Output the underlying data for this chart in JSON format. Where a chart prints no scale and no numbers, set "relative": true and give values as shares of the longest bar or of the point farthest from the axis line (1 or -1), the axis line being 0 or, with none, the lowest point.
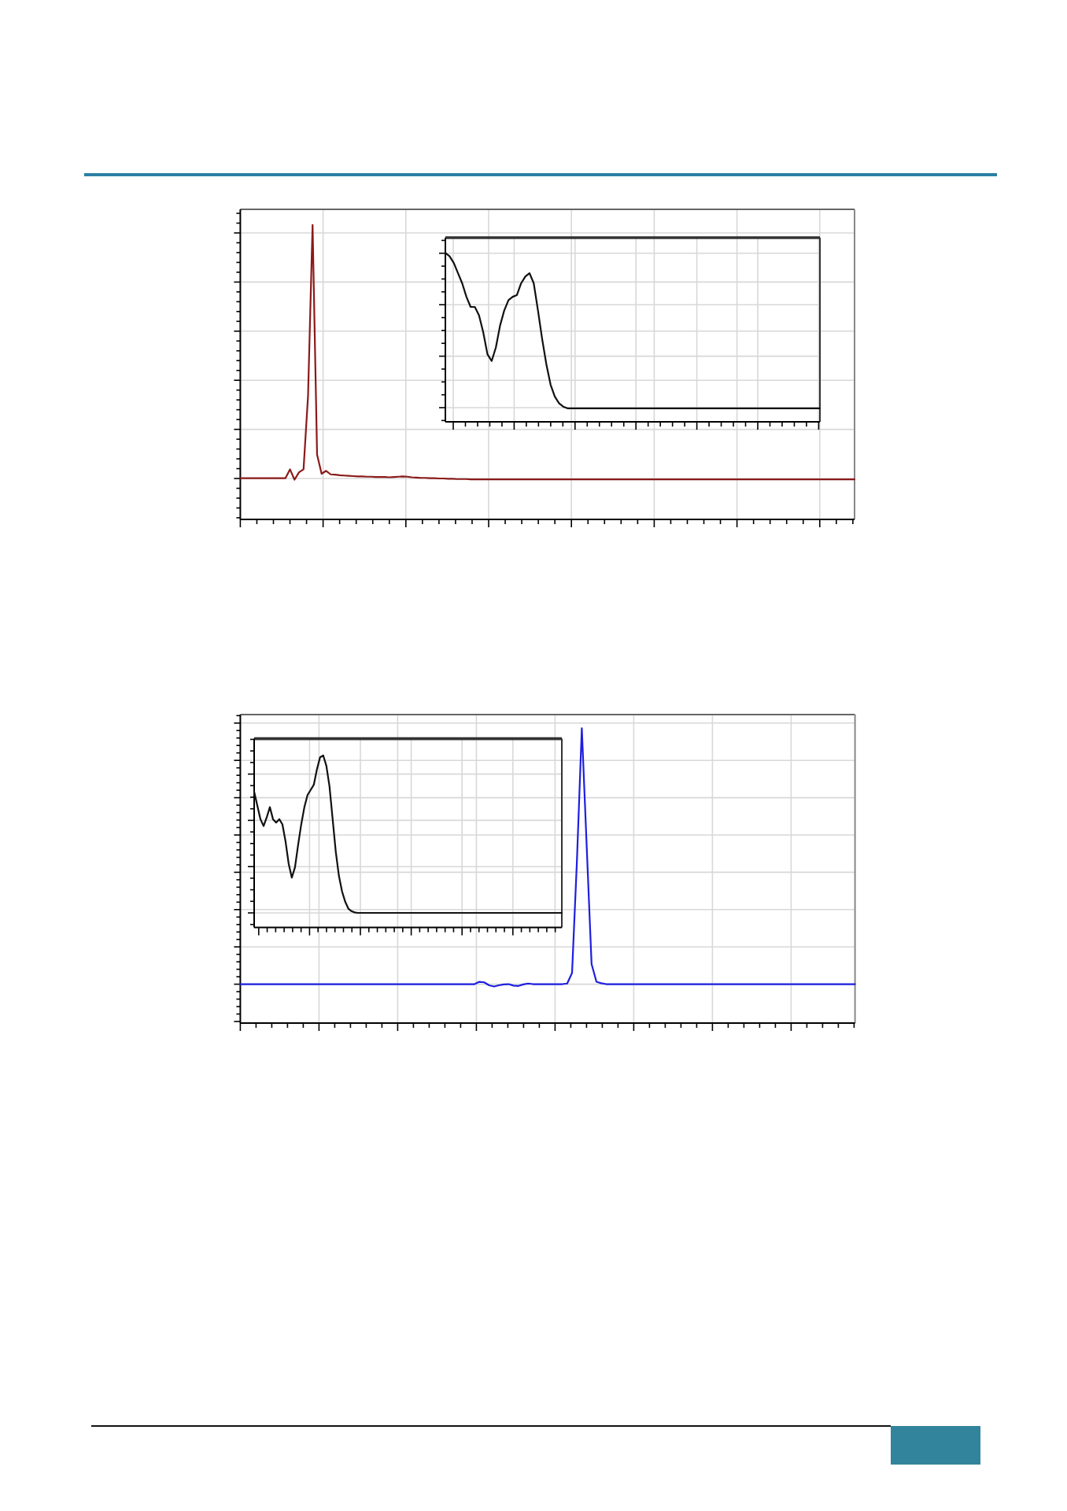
{
  "chart_data": [
    {
      "type": "line",
      "relative": true,
      "grid": true,
      "color": "#8b1a1a",
      "categories": [
        null,
        null,
        null,
        null,
        null,
        null,
        null,
        null,
        null,
        null,
        null,
        null,
        null,
        null,
        null,
        null,
        null,
        null,
        null,
        null,
        null,
        null,
        null,
        null,
        null,
        null,
        null,
        null,
        null,
        null,
        null,
        null,
        null,
        null,
        null,
        null,
        null,
        null,
        null,
        null,
        null,
        null,
        null,
        null,
        null,
        null,
        null,
        null,
        null,
        null,
        null,
        null,
        null,
        null,
        null,
        null,
        null,
        null,
        null,
        null,
        null,
        null,
        null,
        null,
        null,
        null,
        null,
        null,
        null,
        null,
        null,
        null,
        null,
        null,
        null,
        null,
        null,
        null,
        null,
        null,
        null,
        null,
        null,
        null,
        null,
        null,
        null,
        null,
        null,
        null,
        null,
        null,
        null,
        null,
        null,
        null,
        null,
        null,
        null,
        null,
        null,
        null,
        null,
        null,
        null,
        null,
        null,
        null,
        null,
        null,
        null,
        null,
        null,
        null,
        null,
        null,
        null,
        null,
        null,
        null,
        null,
        null,
        null,
        null,
        null,
        null,
        null,
        null,
        null,
        null,
        null,
        null,
        null,
        null,
        null,
        null,
        null
      ],
      "values": [
        0.14,
        0.14,
        0.14,
        0.14,
        0.14,
        0.14,
        0.14,
        0.14,
        0.14,
        0.14,
        0.14,
        0.17,
        0.135,
        0.16,
        0.17,
        0.42,
        1,
        0.22,
        0.155,
        0.165,
        0.153,
        0.152,
        0.15,
        0.149,
        0.148,
        0.147,
        0.146,
        0.146,
        0.145,
        0.145,
        0.144,
        0.144,
        0.144,
        0.143,
        0.144,
        0.145,
        0.146,
        0.145,
        0.143,
        0.142,
        0.141,
        0.141,
        0.14,
        0.14,
        0.139,
        0.139,
        0.138,
        0.138,
        0.137,
        0.137,
        0.137,
        0.136,
        0.136,
        0.136,
        0.136,
        0.136,
        0.136,
        0.136,
        0.136,
        0.136,
        0.136,
        0.136,
        0.136,
        0.136,
        0.136,
        0.136,
        0.136,
        0.136,
        0.136,
        0.136,
        0.136,
        0.136,
        0.136,
        0.136,
        0.136,
        0.136,
        0.136,
        0.136,
        0.136,
        0.136,
        0.136,
        0.136,
        0.136,
        0.136,
        0.136,
        0.136,
        0.136,
        0.136,
        0.136,
        0.136,
        0.136,
        0.136,
        0.136,
        0.136,
        0.136,
        0.136,
        0.136,
        0.136,
        0.136,
        0.136,
        0.136,
        0.136,
        0.136,
        0.136,
        0.136,
        0.136,
        0.136,
        0.136,
        0.136,
        0.136,
        0.136,
        0.136,
        0.136,
        0.136,
        0.136,
        0.136,
        0.136,
        0.136,
        0.136,
        0.136,
        0.136,
        0.136,
        0.136,
        0.136,
        0.136,
        0.136,
        0.136,
        0.136,
        0.136,
        0.136,
        0.136,
        0.136,
        0.136,
        0.136,
        0.136,
        0.136,
        0.136
      ]
    },
    {
      "type": "line",
      "relative": true,
      "grid": true,
      "color": "#111111",
      "categories": [
        null,
        null,
        null,
        null,
        null,
        null,
        null,
        null,
        null,
        null,
        null,
        null,
        null,
        null,
        null,
        null,
        null,
        null,
        null,
        null,
        null,
        null,
        null,
        null,
        null,
        null,
        null,
        null,
        null,
        null,
        null,
        null,
        null,
        null,
        null,
        null,
        null,
        null,
        null,
        null,
        null,
        null,
        null,
        null,
        null,
        null,
        null,
        null,
        null,
        null,
        null,
        null,
        null,
        null,
        null,
        null,
        null,
        null,
        null,
        null,
        null,
        null,
        null,
        null,
        null,
        null,
        null,
        null,
        null,
        null,
        null,
        null,
        null,
        null,
        null,
        null,
        null,
        null,
        null,
        null,
        null,
        null,
        null,
        null,
        null,
        null,
        null,
        null,
        null,
        null
      ],
      "values": [
        1,
        0.98,
        0.94,
        0.88,
        0.82,
        0.74,
        0.68,
        0.68,
        0.63,
        0.53,
        0.4,
        0.36,
        0.44,
        0.57,
        0.66,
        0.72,
        0.74,
        0.75,
        0.82,
        0.86,
        0.88,
        0.82,
        0.66,
        0.49,
        0.34,
        0.22,
        0.15,
        0.11,
        0.09,
        0.08,
        0.08,
        0.08,
        0.08,
        0.08,
        0.08,
        0.08,
        0.08,
        0.08,
        0.08,
        0.08,
        0.08,
        0.08,
        0.08,
        0.08,
        0.08,
        0.08,
        0.08,
        0.08,
        0.08,
        0.08,
        0.08,
        0.08,
        0.08,
        0.08,
        0.08,
        0.08,
        0.08,
        0.08,
        0.08,
        0.08,
        0.08,
        0.08,
        0.08,
        0.08,
        0.08,
        0.08,
        0.08,
        0.08,
        0.08,
        0.08,
        0.08,
        0.08,
        0.08,
        0.08,
        0.08,
        0.08,
        0.08,
        0.08,
        0.08,
        0.08,
        0.08,
        0.08,
        0.08,
        0.08,
        0.08,
        0.08,
        0.08,
        0.08,
        0.08,
        0.08
      ]
    },
    {
      "type": "line",
      "relative": true,
      "grid": true,
      "color": "#1f1fdf",
      "categories": [
        null,
        null,
        null,
        null,
        null,
        null,
        null,
        null,
        null,
        null,
        null,
        null,
        null,
        null,
        null,
        null,
        null,
        null,
        null,
        null,
        null,
        null,
        null,
        null,
        null,
        null,
        null,
        null,
        null,
        null,
        null,
        null,
        null,
        null,
        null,
        null,
        null,
        null,
        null,
        null,
        null,
        null,
        null,
        null,
        null,
        null,
        null,
        null,
        null,
        null,
        null,
        null,
        null,
        null,
        null,
        null,
        null,
        null,
        null,
        null,
        null,
        null,
        null,
        null,
        null,
        null,
        null,
        null,
        null,
        null,
        null,
        null,
        null,
        null,
        null,
        null,
        null,
        null,
        null,
        null,
        null,
        null,
        null,
        null,
        null,
        null,
        null,
        null,
        null,
        null,
        null,
        null,
        null,
        null,
        null,
        null,
        null,
        null,
        null,
        null,
        null,
        null,
        null,
        null,
        null,
        null,
        null,
        null,
        null,
        null,
        null,
        null,
        null,
        null,
        null,
        null,
        null,
        null,
        null,
        null,
        null,
        null,
        null,
        null,
        null,
        null,
        null
      ],
      "values": [
        0.132,
        0.132,
        0.132,
        0.132,
        0.132,
        0.132,
        0.132,
        0.132,
        0.132,
        0.132,
        0.132,
        0.132,
        0.132,
        0.132,
        0.132,
        0.132,
        0.132,
        0.132,
        0.132,
        0.132,
        0.132,
        0.132,
        0.132,
        0.132,
        0.132,
        0.132,
        0.132,
        0.132,
        0.132,
        0.132,
        0.132,
        0.132,
        0.132,
        0.132,
        0.132,
        0.132,
        0.132,
        0.132,
        0.132,
        0.132,
        0.132,
        0.132,
        0.132,
        0.132,
        0.132,
        0.132,
        0.132,
        0.132,
        0.132,
        0.14,
        0.138,
        0.128,
        0.124,
        0.128,
        0.131,
        0.132,
        0.127,
        0.126,
        0.131,
        0.134,
        0.132,
        0.132,
        0.132,
        0.132,
        0.132,
        0.132,
        0.132,
        0.134,
        0.17,
        0.55,
        1,
        0.6,
        0.2,
        0.14,
        0.135,
        0.132,
        0.132,
        0.132,
        0.132,
        0.132,
        0.132,
        0.132,
        0.132,
        0.132,
        0.132,
        0.132,
        0.132,
        0.132,
        0.132,
        0.132,
        0.132,
        0.132,
        0.132,
        0.132,
        0.132,
        0.132,
        0.132,
        0.132,
        0.132,
        0.132,
        0.132,
        0.132,
        0.132,
        0.132,
        0.132,
        0.132,
        0.132,
        0.132,
        0.132,
        0.132,
        0.132,
        0.132,
        0.132,
        0.132,
        0.132,
        0.132,
        0.132,
        0.132,
        0.132,
        0.132,
        0.132,
        0.132,
        0.132,
        0.132,
        0.132,
        0.132,
        0.132
      ]
    },
    {
      "type": "line",
      "relative": true,
      "grid": true,
      "color": "#111111",
      "categories": [
        null,
        null,
        null,
        null,
        null,
        null,
        null,
        null,
        null,
        null,
        null,
        null,
        null,
        null,
        null,
        null,
        null,
        null,
        null,
        null,
        null,
        null,
        null,
        null,
        null,
        null,
        null,
        null,
        null,
        null,
        null,
        null,
        null,
        null,
        null,
        null,
        null,
        null,
        null,
        null,
        null,
        null,
        null,
        null,
        null,
        null,
        null,
        null,
        null,
        null,
        null,
        null,
        null,
        null,
        null,
        null,
        null,
        null,
        null,
        null,
        null,
        null,
        null,
        null,
        null,
        null,
        null,
        null,
        null,
        null,
        null,
        null,
        null,
        null,
        null,
        null,
        null,
        null,
        null,
        null,
        null,
        null,
        null,
        null,
        null,
        null,
        null,
        null,
        null,
        null,
        null,
        null,
        null,
        null,
        null,
        null,
        null,
        null,
        null
      ],
      "values": [
        0.79,
        0.71,
        0.63,
        0.59,
        0.64,
        0.7,
        0.63,
        0.61,
        0.63,
        0.6,
        0.5,
        0.37,
        0.29,
        0.35,
        0.48,
        0.6,
        0.7,
        0.77,
        0.8,
        0.83,
        0.92,
        0.99,
        1,
        0.94,
        0.82,
        0.63,
        0.44,
        0.3,
        0.21,
        0.15,
        0.11,
        0.095,
        0.088,
        0.085,
        0.085,
        0.085,
        0.085,
        0.085,
        0.085,
        0.085,
        0.085,
        0.085,
        0.085,
        0.085,
        0.085,
        0.085,
        0.085,
        0.085,
        0.085,
        0.085,
        0.085,
        0.085,
        0.085,
        0.085,
        0.085,
        0.085,
        0.085,
        0.085,
        0.085,
        0.085,
        0.085,
        0.085,
        0.085,
        0.085,
        0.085,
        0.085,
        0.085,
        0.085,
        0.085,
        0.085,
        0.085,
        0.085,
        0.085,
        0.085,
        0.085,
        0.085,
        0.085,
        0.085,
        0.085,
        0.085,
        0.085,
        0.085,
        0.085,
        0.085,
        0.085,
        0.085,
        0.085,
        0.085,
        0.085,
        0.085,
        0.085,
        0.085,
        0.085,
        0.085,
        0.085,
        0.085,
        0.085,
        0.085,
        0.085
      ]
    }
  ]
}
